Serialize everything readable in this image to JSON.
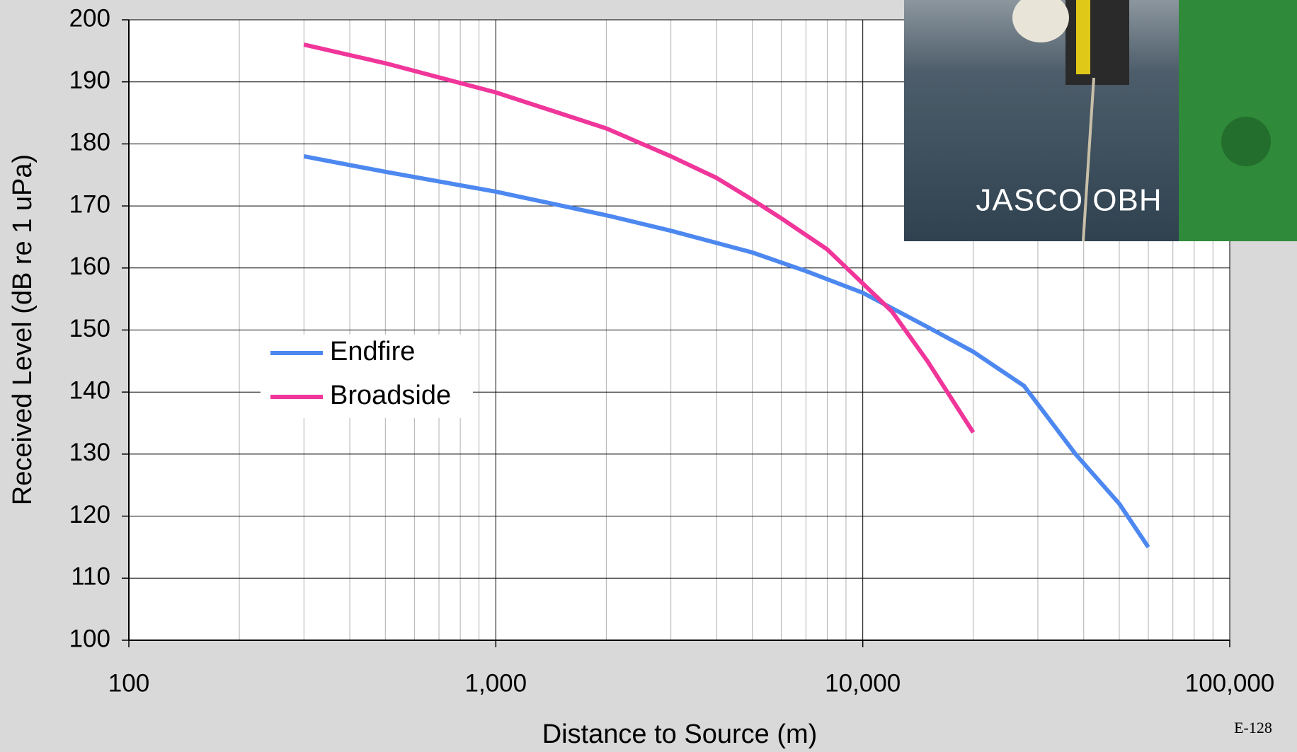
{
  "chart_data": {
    "type": "line",
    "xlabel": "Distance to Source (m)",
    "ylabel": "Received Level (dB re 1 uPa)",
    "xscale": "log",
    "xlim": [
      100,
      100000
    ],
    "xticks": [
      100,
      {
        "value": 1000,
        "label": "1,000"
      },
      {
        "value": 10000,
        "label": "10,000"
      },
      {
        "value": 100000,
        "label": "100,000"
      }
    ],
    "ylim": [
      100,
      200
    ],
    "yticks": [
      100,
      110,
      120,
      130,
      140,
      150,
      160,
      170,
      180,
      190,
      200
    ],
    "grid": true,
    "legend": "center-left",
    "series": [
      {
        "name": "Endfire",
        "color": "#4d88f0",
        "x": [
          300,
          500,
          1000,
          2000,
          3000,
          5000,
          7000,
          10000,
          15000,
          20000,
          27500,
          38000,
          50000,
          60000
        ],
        "values": [
          178,
          175.5,
          172.3,
          168.5,
          166,
          162.5,
          159.5,
          156,
          150.5,
          146.5,
          141,
          130,
          122,
          115
        ]
      },
      {
        "name": "Broadside",
        "color": "#f0369a",
        "x": [
          300,
          500,
          1000,
          2000,
          3000,
          4000,
          5000,
          6000,
          8000,
          10000,
          12000,
          15000,
          20000
        ],
        "values": [
          196,
          193,
          188.3,
          182.5,
          178,
          174.5,
          171,
          168,
          163,
          157.5,
          153,
          145,
          133.5
        ]
      }
    ]
  },
  "photo": {
    "caption": "JASCO OBH"
  },
  "page_number": "E-128"
}
